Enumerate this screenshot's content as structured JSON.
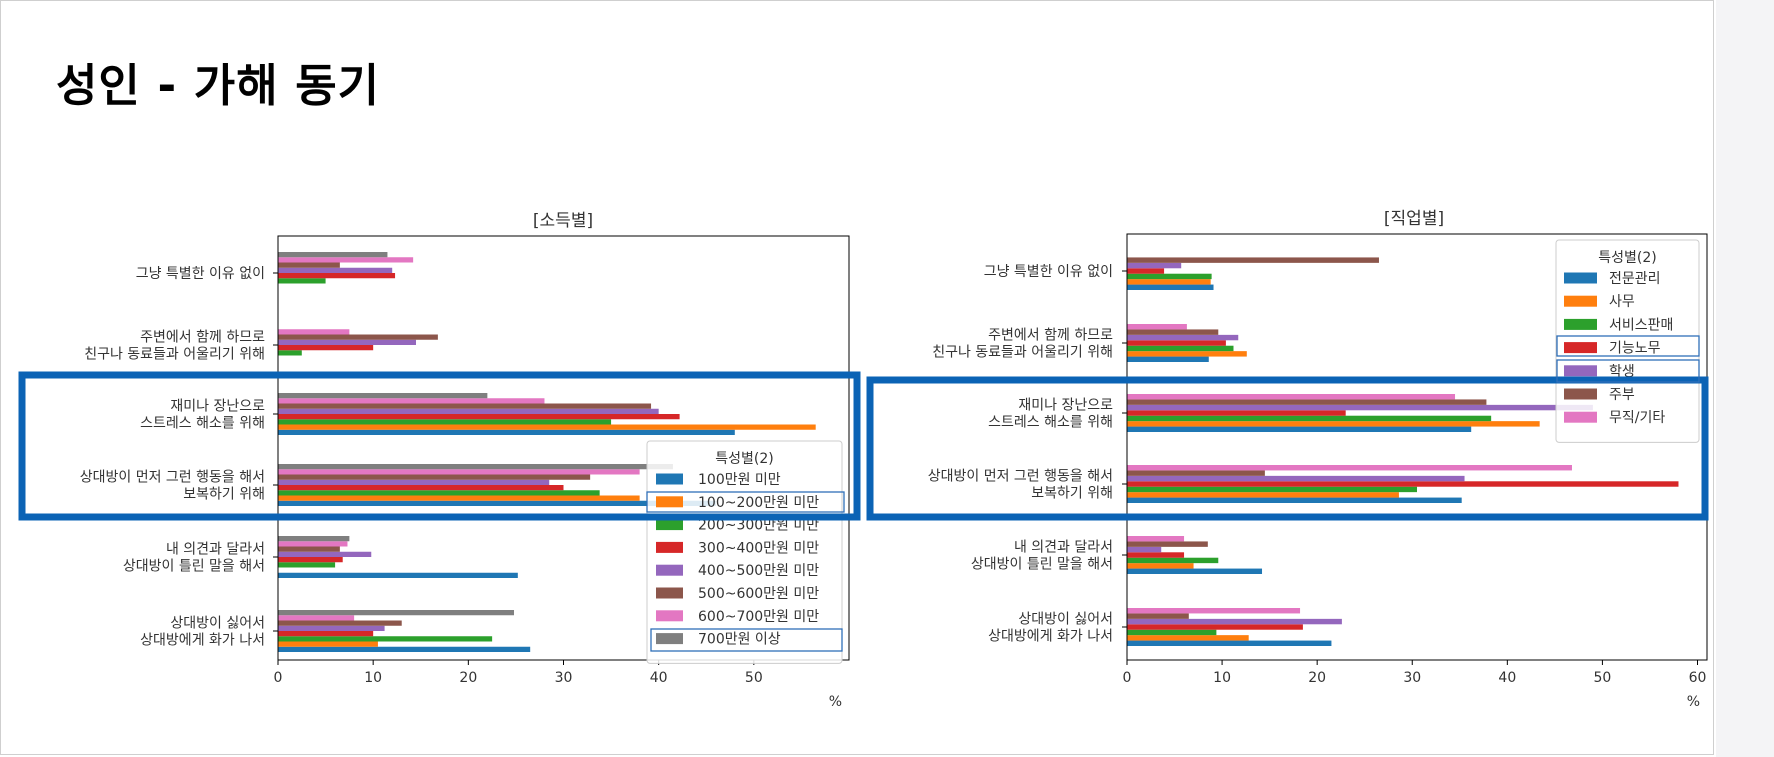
{
  "page": {
    "title": "성인 - 가해 동기"
  },
  "chart_data": [
    {
      "type": "bar",
      "orientation": "horizontal",
      "title": "[소득별]",
      "xlabel": "%",
      "ylabel": "",
      "xlim": [
        0,
        60
      ],
      "xticks": [
        0,
        10,
        20,
        30,
        40,
        50
      ],
      "legend": {
        "title": "특성별(2)",
        "placement": "lower-right"
      },
      "categories": [
        [
          "상대방이 싫어서",
          "상대방에게 화가 나서"
        ],
        [
          "내 의견과 달라서",
          "상대방이 틀린 말을 해서"
        ],
        [
          "상대방이 먼저 그런 행동을 해서",
          "보복하기 위해"
        ],
        [
          "재미나 장난으로",
          "스트레스 해소를 위해"
        ],
        [
          "주변에서 함께 하므로",
          "친구나 동료들과 어울리기 위해"
        ],
        [
          "그냥 특별한 이유 없이"
        ]
      ],
      "series": [
        {
          "name": "100만원 미만",
          "color": "#1f77b4",
          "values": [
            26.5,
            25.2,
            46.0,
            48.0,
            0.0,
            0.0
          ]
        },
        {
          "name": "100~200만원 미만",
          "color": "#ff7f0e",
          "values": [
            10.5,
            0.0,
            38.0,
            56.5,
            0.0,
            0.0
          ]
        },
        {
          "name": "200~300만원 미만",
          "color": "#2ca02c",
          "values": [
            22.5,
            6.0,
            33.8,
            35.0,
            2.5,
            5.0
          ]
        },
        {
          "name": "300~400만원 미만",
          "color": "#d62728",
          "values": [
            10.0,
            6.8,
            30.0,
            42.2,
            10.0,
            12.3
          ]
        },
        {
          "name": "400~500만원 미만",
          "color": "#9467bd",
          "values": [
            11.2,
            9.8,
            28.5,
            40.0,
            14.5,
            12.0
          ]
        },
        {
          "name": "500~600만원 미만",
          "color": "#8c564b",
          "values": [
            13.0,
            6.5,
            32.8,
            39.2,
            16.8,
            6.5
          ]
        },
        {
          "name": "600~700만원 미만",
          "color": "#e377c2",
          "values": [
            8.0,
            7.3,
            38.0,
            28.0,
            7.5,
            14.2
          ]
        },
        {
          "name": "700만원 이상",
          "color": "#7f7f7f",
          "values": [
            24.8,
            7.5,
            41.5,
            22.0,
            0.0,
            11.5
          ]
        }
      ]
    },
    {
      "type": "bar",
      "orientation": "horizontal",
      "title": "[직업별]",
      "xlabel": "%",
      "ylabel": "",
      "xlim": [
        0,
        61
      ],
      "xticks": [
        0,
        10,
        20,
        30,
        40,
        50,
        60
      ],
      "legend": {
        "title": "특성별(2)",
        "placement": "upper-right"
      },
      "categories": [
        [
          "상대방이 싫어서",
          "상대방에게 화가 나서"
        ],
        [
          "내 의견과 달라서",
          "상대방이 틀린 말을 해서"
        ],
        [
          "상대방이 먼저 그런 행동을 해서",
          "보복하기 위해"
        ],
        [
          "재미나 장난으로",
          "스트레스 해소를 위해"
        ],
        [
          "주변에서 함께 하므로",
          "친구나 동료들과 어울리기 위해"
        ],
        [
          "그냥 특별한 이유 없이"
        ]
      ],
      "series": [
        {
          "name": "전문관리",
          "color": "#1f77b4",
          "values": [
            21.5,
            14.2,
            35.2,
            36.2,
            8.6,
            9.1
          ]
        },
        {
          "name": "사무",
          "color": "#ff7f0e",
          "values": [
            12.8,
            7.0,
            28.6,
            43.4,
            12.6,
            8.8
          ]
        },
        {
          "name": "서비스판매",
          "color": "#2ca02c",
          "values": [
            9.4,
            9.6,
            30.5,
            38.3,
            11.2,
            8.9
          ]
        },
        {
          "name": "기능노무",
          "color": "#d62728",
          "values": [
            18.5,
            6.0,
            58.0,
            23.0,
            10.4,
            3.9
          ]
        },
        {
          "name": "학생",
          "color": "#9467bd",
          "values": [
            22.6,
            3.6,
            35.5,
            49.0,
            11.7,
            5.7
          ]
        },
        {
          "name": "주부",
          "color": "#8c564b",
          "values": [
            6.5,
            8.5,
            14.5,
            37.8,
            9.6,
            26.5
          ]
        },
        {
          "name": "무직/기타",
          "color": "#e377c2",
          "values": [
            18.2,
            6.0,
            46.8,
            34.5,
            6.3,
            0.0
          ]
        }
      ]
    }
  ]
}
